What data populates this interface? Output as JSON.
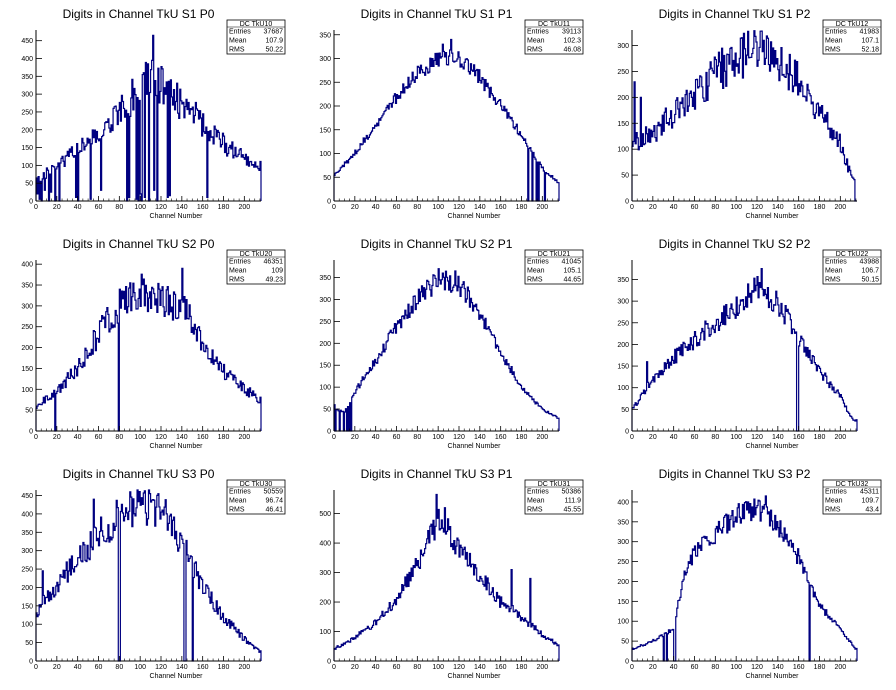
{
  "chart_data": [
    {
      "type": "histogram",
      "title": "Digits in Channel TkU S1 P0",
      "xlabel": "Channel Number",
      "xlim": [
        0,
        216
      ],
      "ylim": [
        0,
        480
      ],
      "xticks": [
        0,
        20,
        40,
        60,
        80,
        100,
        120,
        140,
        160,
        180,
        200
      ],
      "yticks": [
        0,
        50,
        100,
        150,
        200,
        250,
        300,
        350,
        400,
        450
      ],
      "stats": {
        "name": "DC_TkU10",
        "entries": "37687",
        "mean": "107.9",
        "rms": "50.22"
      },
      "seed": 11,
      "envelope": [
        [
          0,
          55
        ],
        [
          20,
          100
        ],
        [
          40,
          140
        ],
        [
          60,
          185
        ],
        [
          80,
          250
        ],
        [
          100,
          320
        ],
        [
          110,
          350
        ],
        [
          120,
          330
        ],
        [
          140,
          270
        ],
        [
          160,
          220
        ],
        [
          180,
          160
        ],
        [
          200,
          120
        ],
        [
          215,
          100
        ]
      ],
      "noise": 0.18,
      "dips": [
        [
          1,
          20
        ],
        [
          3,
          5
        ],
        [
          5,
          0
        ],
        [
          8,
          30
        ],
        [
          12,
          0
        ],
        [
          14,
          25
        ],
        [
          18,
          0
        ],
        [
          22,
          0
        ],
        [
          38,
          10
        ],
        [
          40,
          0
        ],
        [
          52,
          5
        ],
        [
          62,
          30
        ],
        [
          87,
          0
        ],
        [
          89,
          10
        ],
        [
          96,
          5
        ],
        [
          98,
          0
        ],
        [
          100,
          20
        ],
        [
          101,
          0
        ],
        [
          104,
          10
        ],
        [
          108,
          0
        ],
        [
          113,
          30
        ],
        [
          116,
          0
        ],
        [
          126,
          10
        ],
        [
          128,
          15
        ],
        [
          164,
          10
        ]
      ],
      "spikes": [
        [
          112,
          465
        ],
        [
          107,
          385
        ],
        [
          129,
          340
        ]
      ]
    },
    {
      "type": "histogram",
      "title": "Digits in Channel TkU S1 P1",
      "xlabel": "Channel Number",
      "xlim": [
        0,
        216
      ],
      "ylim": [
        0,
        360
      ],
      "xticks": [
        0,
        20,
        40,
        60,
        80,
        100,
        120,
        140,
        160,
        180,
        200
      ],
      "yticks": [
        0,
        50,
        100,
        150,
        200,
        250,
        300,
        350
      ],
      "stats": {
        "name": "DC_TkU11",
        "entries": "39113",
        "mean": "102.3",
        "rms": "46.08"
      },
      "seed": 12,
      "envelope": [
        [
          0,
          55
        ],
        [
          20,
          100
        ],
        [
          40,
          160
        ],
        [
          60,
          220
        ],
        [
          80,
          270
        ],
        [
          100,
          300
        ],
        [
          120,
          300
        ],
        [
          140,
          260
        ],
        [
          160,
          200
        ],
        [
          180,
          140
        ],
        [
          200,
          70
        ],
        [
          215,
          40
        ]
      ],
      "noise": 0.06,
      "dips": [
        [
          186,
          0
        ],
        [
          190,
          0
        ],
        [
          194,
          0
        ],
        [
          196,
          0
        ],
        [
          202,
          0
        ]
      ],
      "spikes": [
        [
          112,
          340
        ],
        [
          104,
          330
        ]
      ]
    },
    {
      "type": "histogram",
      "title": "Digits in Channel TkU S1 P2",
      "xlabel": "Channel Number",
      "xlim": [
        0,
        216
      ],
      "ylim": [
        0,
        330
      ],
      "xticks": [
        0,
        20,
        40,
        60,
        80,
        100,
        120,
        140,
        160,
        180,
        200
      ],
      "yticks": [
        0,
        50,
        100,
        150,
        200,
        250,
        300
      ],
      "stats": {
        "name": "DC_TkU12",
        "entries": "41983",
        "mean": "107.1",
        "rms": "52.18"
      },
      "seed": 13,
      "envelope": [
        [
          0,
          110
        ],
        [
          20,
          130
        ],
        [
          40,
          170
        ],
        [
          60,
          200
        ],
        [
          80,
          245
        ],
        [
          100,
          275
        ],
        [
          120,
          295
        ],
        [
          140,
          270
        ],
        [
          160,
          230
        ],
        [
          180,
          170
        ],
        [
          200,
          110
        ],
        [
          212,
          40
        ]
      ],
      "noise": 0.16,
      "dips": [
        [
          214,
          0
        ],
        [
          215,
          0
        ]
      ],
      "spikes": [
        [
          2,
          230
        ],
        [
          8,
          200
        ],
        [
          126,
          310
        ]
      ]
    },
    {
      "type": "histogram",
      "title": "Digits in Channel TkU S2 P0",
      "xlabel": "Channel Number",
      "xlim": [
        0,
        216
      ],
      "ylim": [
        0,
        410
      ],
      "xticks": [
        0,
        20,
        40,
        60,
        80,
        100,
        120,
        140,
        160,
        180,
        200
      ],
      "yticks": [
        0,
        50,
        100,
        150,
        200,
        250,
        300,
        350,
        400
      ],
      "stats": {
        "name": "DC_TkU20",
        "entries": "46351",
        "mean": "109",
        "rms": "49.23"
      },
      "seed": 21,
      "envelope": [
        [
          0,
          60
        ],
        [
          20,
          95
        ],
        [
          40,
          150
        ],
        [
          60,
          230
        ],
        [
          80,
          305
        ],
        [
          100,
          335
        ],
        [
          120,
          320
        ],
        [
          140,
          300
        ],
        [
          160,
          210
        ],
        [
          180,
          145
        ],
        [
          200,
          100
        ],
        [
          215,
          75
        ]
      ],
      "noise": 0.14,
      "dips": [
        [
          18,
          0
        ],
        [
          79,
          0
        ],
        [
          80,
          0
        ],
        [
          216,
          0
        ]
      ],
      "spikes": [
        [
          140,
          390
        ],
        [
          80,
          340
        ]
      ]
    },
    {
      "type": "histogram",
      "title": "Digits in Channel TkU S2 P1",
      "xlabel": "Channel Number",
      "xlim": [
        0,
        216
      ],
      "ylim": [
        0,
        390
      ],
      "xticks": [
        0,
        20,
        40,
        60,
        80,
        100,
        120,
        140,
        160,
        180,
        200
      ],
      "yticks": [
        0,
        50,
        100,
        150,
        200,
        250,
        300,
        350
      ],
      "stats": {
        "name": "DC_TkU21",
        "entries": "41045",
        "mean": "105.1",
        "rms": "44.65"
      },
      "seed": 22,
      "envelope": [
        [
          0,
          55
        ],
        [
          10,
          40
        ],
        [
          20,
          90
        ],
        [
          40,
          160
        ],
        [
          60,
          240
        ],
        [
          80,
          300
        ],
        [
          100,
          345
        ],
        [
          120,
          335
        ],
        [
          140,
          270
        ],
        [
          160,
          180
        ],
        [
          180,
          100
        ],
        [
          200,
          50
        ],
        [
          215,
          30
        ]
      ],
      "noise": 0.07,
      "dips": [
        [
          1,
          0
        ],
        [
          5,
          0
        ],
        [
          9,
          0
        ],
        [
          12,
          0
        ],
        [
          14,
          0
        ],
        [
          16,
          0
        ]
      ],
      "spikes": [
        [
          100,
          370
        ],
        [
          116,
          365
        ],
        [
          0,
          60
        ]
      ]
    },
    {
      "type": "histogram",
      "title": "Digits in Channel TkU S2 P2",
      "xlabel": "Channel Number",
      "xlim": [
        0,
        216
      ],
      "ylim": [
        0,
        395
      ],
      "xticks": [
        0,
        20,
        40,
        60,
        80,
        100,
        120,
        140,
        160,
        180,
        200
      ],
      "yticks": [
        0,
        50,
        100,
        150,
        200,
        250,
        300,
        350
      ],
      "stats": {
        "name": "DC_TkU22",
        "entries": "43988",
        "mean": "106.7",
        "rms": "50.15"
      },
      "seed": 23,
      "envelope": [
        [
          0,
          50
        ],
        [
          20,
          120
        ],
        [
          40,
          170
        ],
        [
          60,
          210
        ],
        [
          80,
          250
        ],
        [
          100,
          290
        ],
        [
          120,
          330
        ],
        [
          140,
          300
        ],
        [
          160,
          220
        ],
        [
          180,
          140
        ],
        [
          200,
          80
        ],
        [
          212,
          25
        ]
      ],
      "noise": 0.1,
      "dips": [
        [
          158,
          0
        ],
        [
          159,
          0
        ]
      ],
      "spikes": [
        [
          124,
          375
        ],
        [
          14,
          160
        ]
      ]
    },
    {
      "type": "histogram",
      "title": "Digits in Channel TkU S3 P0",
      "xlabel": "Channel Number",
      "xlim": [
        0,
        216
      ],
      "ylim": [
        0,
        465
      ],
      "xticks": [
        0,
        20,
        40,
        60,
        80,
        100,
        120,
        140,
        160,
        180,
        200
      ],
      "yticks": [
        0,
        50,
        100,
        150,
        200,
        250,
        300,
        350,
        400,
        450
      ],
      "stats": {
        "name": "DC_TkU30",
        "entries": "50559",
        "mean": "96.74",
        "rms": "46.41"
      },
      "seed": 31,
      "envelope": [
        [
          0,
          130
        ],
        [
          20,
          210
        ],
        [
          40,
          280
        ],
        [
          60,
          340
        ],
        [
          80,
          400
        ],
        [
          100,
          430
        ],
        [
          120,
          410
        ],
        [
          140,
          320
        ],
        [
          160,
          200
        ],
        [
          180,
          120
        ],
        [
          200,
          60
        ],
        [
          215,
          25
        ]
      ],
      "noise": 0.13,
      "dips": [
        [
          79,
          0
        ],
        [
          80,
          0
        ],
        [
          142,
          0
        ],
        [
          143,
          0
        ],
        [
          150,
          0
        ]
      ],
      "spikes": [
        [
          55,
          440
        ],
        [
          6,
          245
        ],
        [
          125,
          400
        ]
      ]
    },
    {
      "type": "histogram",
      "title": "Digits in Channel TkU S3 P1",
      "xlabel": "Channel Number",
      "xlim": [
        0,
        216
      ],
      "ylim": [
        0,
        580
      ],
      "xticks": [
        0,
        20,
        40,
        60,
        80,
        100,
        120,
        140,
        160,
        180,
        200
      ],
      "yticks": [
        0,
        100,
        200,
        300,
        400,
        500
      ],
      "stats": {
        "name": "DC_TkU31",
        "entries": "50386",
        "mean": "111.9",
        "rms": "45.55"
      },
      "seed": 32,
      "envelope": [
        [
          0,
          40
        ],
        [
          20,
          80
        ],
        [
          40,
          130
        ],
        [
          60,
          210
        ],
        [
          80,
          330
        ],
        [
          100,
          480
        ],
        [
          110,
          440
        ],
        [
          120,
          380
        ],
        [
          140,
          290
        ],
        [
          160,
          200
        ],
        [
          180,
          150
        ],
        [
          200,
          90
        ],
        [
          215,
          55
        ]
      ],
      "noise": 0.1,
      "dips": [],
      "spikes": [
        [
          98,
          565
        ],
        [
          106,
          520
        ],
        [
          170,
          310
        ],
        [
          188,
          280
        ]
      ]
    },
    {
      "type": "histogram",
      "title": "Digits in Channel TkU S3 P2",
      "xlabel": "Channel Number",
      "xlim": [
        0,
        216
      ],
      "ylim": [
        0,
        430
      ],
      "xticks": [
        0,
        20,
        40,
        60,
        80,
        100,
        120,
        140,
        160,
        180,
        200
      ],
      "yticks": [
        0,
        50,
        100,
        150,
        200,
        250,
        300,
        350,
        400
      ],
      "stats": {
        "name": "DC_TkU32",
        "entries": "45311",
        "mean": "109.7",
        "rms": "43.4"
      },
      "seed": 33,
      "envelope": [
        [
          0,
          30
        ],
        [
          20,
          50
        ],
        [
          40,
          80
        ],
        [
          50,
          220
        ],
        [
          60,
          270
        ],
        [
          80,
          320
        ],
        [
          100,
          370
        ],
        [
          120,
          380
        ],
        [
          140,
          340
        ],
        [
          160,
          260
        ],
        [
          170,
          190
        ],
        [
          180,
          140
        ],
        [
          200,
          80
        ],
        [
          215,
          30
        ]
      ],
      "noise": 0.08,
      "dips": [
        [
          30,
          0
        ],
        [
          33,
          0
        ],
        [
          40,
          0
        ],
        [
          41,
          0
        ],
        [
          170,
          0
        ]
      ],
      "spikes": [
        [
          128,
          415
        ]
      ]
    }
  ],
  "stat_labels": {
    "entries": "Entries",
    "mean": "Mean",
    "rms": "RMS"
  },
  "colors": {
    "line": "#000080",
    "axis": "#000000",
    "background": "#ffffff"
  }
}
